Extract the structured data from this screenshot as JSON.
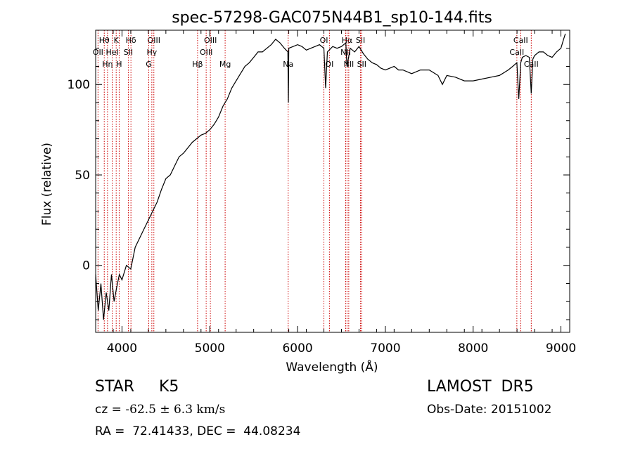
{
  "chart_data": {
    "type": "line",
    "title": "spec-57298-GAC075N44B1_sp10-144.fits",
    "xlabel": "Wavelength (Å)",
    "ylabel": "Flux (relative)",
    "xlim": [
      3700,
      9100
    ],
    "ylim": [
      -37,
      130
    ],
    "x_ticks": [
      4000,
      5000,
      6000,
      7000,
      8000,
      9000
    ],
    "y_ticks": [
      0,
      50,
      100
    ],
    "grid": false,
    "legend": "none",
    "line_color": "#000000",
    "marker_color": "#cc0000",
    "series": [
      {
        "x": [
          3700,
          3730,
          3760,
          3790,
          3820,
          3850,
          3880,
          3910,
          3940,
          3970,
          4000,
          4050,
          4100,
          4150,
          4200,
          4250,
          4300,
          4350,
          4400,
          4450,
          4500,
          4550,
          4600,
          4650,
          4700,
          4750,
          4800,
          4850,
          4900,
          4950,
          5000,
          5050,
          5100,
          5150,
          5200,
          5250,
          5300,
          5350,
          5400,
          5450,
          5500,
          5550,
          5600,
          5650,
          5700,
          5750,
          5800,
          5850,
          5890,
          5895,
          5900,
          5950,
          6000,
          6050,
          6100,
          6150,
          6200,
          6250,
          6300,
          6320,
          6340,
          6360,
          6400,
          6450,
          6500,
          6550,
          6563,
          6600,
          6650,
          6700,
          6750,
          6800,
          6850,
          6900,
          6950,
          7000,
          7050,
          7100,
          7150,
          7200,
          7300,
          7400,
          7500,
          7600,
          7650,
          7700,
          7800,
          7900,
          8000,
          8100,
          8200,
          8300,
          8400,
          8450,
          8498,
          8520,
          8542,
          8560,
          8600,
          8640,
          8662,
          8680,
          8700,
          8750,
          8800,
          8850,
          8900,
          8950,
          9000,
          9030,
          9050
        ],
        "y": [
          -5,
          -25,
          -10,
          -30,
          -15,
          -25,
          -5,
          -20,
          -12,
          -5,
          -8,
          0,
          -2,
          10,
          15,
          20,
          25,
          30,
          35,
          42,
          48,
          50,
          55,
          60,
          62,
          65,
          68,
          70,
          72,
          73,
          75,
          78,
          82,
          88,
          92,
          98,
          102,
          106,
          110,
          112,
          115,
          118,
          118,
          120,
          122,
          125,
          123,
          120,
          118,
          90,
          120,
          121,
          122,
          121,
          119,
          120,
          121,
          122,
          120,
          98,
          118,
          119,
          121,
          120,
          121,
          123,
          110,
          120,
          118,
          121,
          117,
          114,
          112,
          111,
          109,
          108,
          109,
          110,
          108,
          108,
          106,
          108,
          108,
          105,
          100,
          105,
          104,
          102,
          102,
          103,
          104,
          105,
          108,
          110,
          112,
          92,
          112,
          115,
          116,
          115,
          95,
          114,
          116,
          118,
          118,
          116,
          115,
          118,
          120,
          125,
          128
        ]
      }
    ],
    "line_markers": [
      {
        "label": "OII",
        "x": 3727,
        "row": 2
      },
      {
        "label": "Hη",
        "x": 3835,
        "row": 3
      },
      {
        "label": "Hθ",
        "x": 3798,
        "row": 1
      },
      {
        "label": "K",
        "x": 3934,
        "row": 1
      },
      {
        "label": "HeI",
        "x": 3889,
        "row": 2
      },
      {
        "label": "H",
        "x": 3968,
        "row": 3
      },
      {
        "label": "Hδ",
        "x": 4102,
        "row": 1
      },
      {
        "label": "SII",
        "x": 4072,
        "row": 2
      },
      {
        "label": "OIII",
        "x": 4363,
        "row": 1
      },
      {
        "label": "Hγ",
        "x": 4340,
        "row": 2
      },
      {
        "label": "G",
        "x": 4305,
        "row": 3
      },
      {
        "label": "Hβ",
        "x": 4861,
        "row": 3
      },
      {
        "label": "OIII",
        "x": 5007,
        "row": 1
      },
      {
        "label": "OIII",
        "x": 4959,
        "row": 2
      },
      {
        "label": "Mg",
        "x": 5175,
        "row": 3
      },
      {
        "label": "Na",
        "x": 5893,
        "row": 3
      },
      {
        "label": "OI",
        "x": 6300,
        "row": 1
      },
      {
        "label": "OI",
        "x": 6363,
        "row": 3
      },
      {
        "label": "Hα",
        "x": 6563,
        "row": 1
      },
      {
        "label": "NII",
        "x": 6548,
        "row": 2
      },
      {
        "label": "NII",
        "x": 6583,
        "row": 3
      },
      {
        "label": "SII",
        "x": 6717,
        "row": 1
      },
      {
        "label": "SII",
        "x": 6731,
        "row": 3
      },
      {
        "label": "CaII",
        "x": 8542,
        "row": 1
      },
      {
        "label": "CaII",
        "x": 8498,
        "row": 2
      },
      {
        "label": "CaII",
        "x": 8662,
        "row": 3
      }
    ]
  },
  "footer": {
    "object_class": "STAR",
    "subclass": "K5",
    "survey": "LAMOST  DR5",
    "cz_prefix": "cz = ",
    "cz_value": "-62.5 ± 6.3 km/s",
    "obs_date": "Obs-Date: 20151002",
    "coords": "RA =  72.41433, DEC =  44.08234"
  }
}
